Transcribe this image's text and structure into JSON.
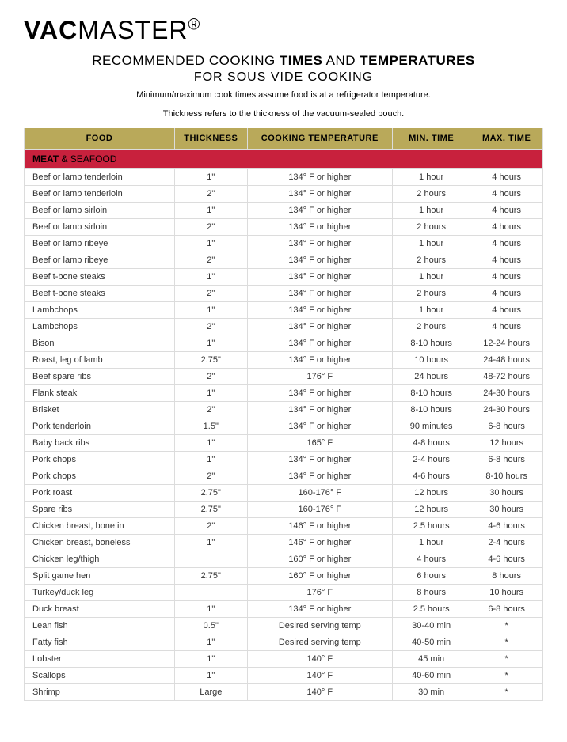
{
  "brand": {
    "bold": "VAC",
    "light": "MASTER",
    "reg": "®"
  },
  "title": {
    "pre": "RECOMMENDED COOKING ",
    "b1": "TIMES",
    "mid": " AND ",
    "b2": "TEMPERATURES"
  },
  "subtitle": "FOR SOUS VIDE COOKING",
  "note1": "Minimum/maximum cook times assume food is at a refrigerator temperature.",
  "note2": "Thickness refers to the thickness of the vacuum-sealed pouch.",
  "columns": [
    "FOOD",
    "THICKNESS",
    "COOKING TEMPERATURE",
    "MIN. TIME",
    "MAX. TIME"
  ],
  "section": {
    "bold": "MEAT",
    "rest": " & SEAFOOD"
  },
  "colors": {
    "header_bg": "#b9a95a",
    "section_bg": "#c8213d",
    "border": "#dcdcdc",
    "text": "#333333",
    "background": "#ffffff"
  },
  "rows": [
    [
      "Beef or lamb tenderloin",
      "1\"",
      "134° F or higher",
      "1 hour",
      "4 hours"
    ],
    [
      "Beef or lamb tenderloin",
      "2\"",
      "134° F or higher",
      "2 hours",
      "4 hours"
    ],
    [
      "Beef or lamb sirloin",
      "1\"",
      "134° F or higher",
      "1 hour",
      "4 hours"
    ],
    [
      "Beef or lamb sirloin",
      "2\"",
      "134° F or higher",
      "2 hours",
      "4 hours"
    ],
    [
      "Beef or lamb ribeye",
      "1\"",
      "134° F or higher",
      "1 hour",
      "4 hours"
    ],
    [
      "Beef or lamb ribeye",
      "2\"",
      "134° F or higher",
      "2 hours",
      "4 hours"
    ],
    [
      "Beef t-bone steaks",
      "1\"",
      "134° F or higher",
      "1 hour",
      "4 hours"
    ],
    [
      "Beef t-bone steaks",
      "2\"",
      "134° F or higher",
      "2 hours",
      "4 hours"
    ],
    [
      "Lambchops",
      "1\"",
      "134° F or higher",
      "1 hour",
      "4 hours"
    ],
    [
      "Lambchops",
      "2\"",
      "134° F or higher",
      "2 hours",
      "4 hours"
    ],
    [
      "Bison",
      "1\"",
      "134° F or higher",
      "8-10 hours",
      "12-24 hours"
    ],
    [
      "Roast, leg of lamb",
      "2.75\"",
      "134° F or higher",
      "10 hours",
      "24-48 hours"
    ],
    [
      "Beef spare ribs",
      "2\"",
      "176° F",
      "24 hours",
      "48-72 hours"
    ],
    [
      "Flank steak",
      "1\"",
      "134° F or higher",
      "8-10 hours",
      "24-30 hours"
    ],
    [
      "Brisket",
      "2\"",
      "134° F or higher",
      "8-10 hours",
      "24-30 hours"
    ],
    [
      "Pork tenderloin",
      "1.5\"",
      "134° F or higher",
      "90 minutes",
      "6-8 hours"
    ],
    [
      "Baby back ribs",
      "1\"",
      "165° F",
      "4-8 hours",
      "12 hours"
    ],
    [
      "Pork chops",
      "1\"",
      "134° F or higher",
      "2-4 hours",
      "6-8 hours"
    ],
    [
      "Pork chops",
      "2\"",
      "134° F or higher",
      "4-6 hours",
      "8-10 hours"
    ],
    [
      "Pork roast",
      "2.75\"",
      "160-176° F",
      "12 hours",
      "30 hours"
    ],
    [
      "Spare ribs",
      "2.75\"",
      "160-176° F",
      "12 hours",
      "30 hours"
    ],
    [
      "Chicken breast, bone in",
      "2\"",
      "146° F or higher",
      "2.5 hours",
      "4-6 hours"
    ],
    [
      "Chicken breast, boneless",
      "1\"",
      "146° F or higher",
      "1 hour",
      "2-4 hours"
    ],
    [
      "Chicken leg/thigh",
      "",
      "160° F or higher",
      "4 hours",
      "4-6 hours"
    ],
    [
      "Split game hen",
      "2.75\"",
      "160° F or higher",
      "6 hours",
      "8 hours"
    ],
    [
      "Turkey/duck leg",
      "",
      "176° F",
      "8 hours",
      "10 hours"
    ],
    [
      "Duck breast",
      "1\"",
      "134° F or higher",
      "2.5 hours",
      "6-8 hours"
    ],
    [
      "Lean fish",
      "0.5\"",
      "Desired serving temp",
      "30-40 min",
      "*"
    ],
    [
      "Fatty fish",
      "1\"",
      "Desired serving temp",
      "40-50 min",
      "*"
    ],
    [
      "Lobster",
      "1\"",
      "140° F",
      "45 min",
      "*"
    ],
    [
      "Scallops",
      "1\"",
      "140° F",
      "40-60 min",
      "*"
    ],
    [
      "Shrimp",
      "Large",
      "140° F",
      "30 min",
      "*"
    ]
  ]
}
